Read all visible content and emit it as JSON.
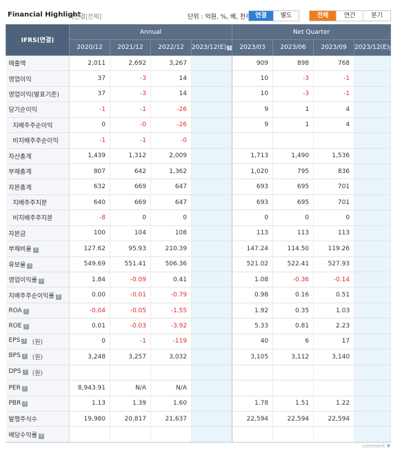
{
  "header": {
    "title": "Financial Highlight",
    "subtitle": "[연결|전체]",
    "unit": "단위 : 억원, %, 배, 천주",
    "toggle1": [
      {
        "label": "연결",
        "active": true
      },
      {
        "label": "별도",
        "active": false
      }
    ],
    "toggle2": [
      {
        "label": "전체",
        "active": true
      },
      {
        "label": "연간",
        "active": false
      },
      {
        "label": "분기",
        "active": false
      }
    ]
  },
  "table": {
    "row_header": "IFRS(연결)",
    "groups": [
      "Annual",
      "Net Quarter"
    ],
    "annual_periods": [
      "2020/12",
      "2021/12",
      "2022/12",
      "2023/12(E)"
    ],
    "quarter_periods": [
      "2023/03",
      "2023/06",
      "2023/09",
      "2023/12(E)"
    ],
    "rows": [
      {
        "label": "매출액",
        "sub": false,
        "q": false,
        "unit": "",
        "values": [
          "2,011",
          "2,692",
          "3,267",
          "",
          "909",
          "898",
          "768",
          ""
        ]
      },
      {
        "label": "영업이익",
        "sub": false,
        "q": false,
        "unit": "",
        "values": [
          "37",
          "-3",
          "14",
          "",
          "10",
          "-3",
          "-1",
          ""
        ]
      },
      {
        "label": "영업이익(발표기준)",
        "sub": false,
        "q": false,
        "unit": "",
        "values": [
          "37",
          "-3",
          "14",
          "",
          "10",
          "-3",
          "-1",
          ""
        ]
      },
      {
        "label": "당기순이익",
        "sub": false,
        "q": false,
        "unit": "",
        "values": [
          "-1",
          "-1",
          "-26",
          "",
          "9",
          "1",
          "4",
          ""
        ]
      },
      {
        "label": "지배주주순이익",
        "sub": true,
        "q": false,
        "unit": "",
        "values": [
          "0",
          "-0",
          "-26",
          "",
          "9",
          "1",
          "4",
          ""
        ]
      },
      {
        "label": "비지배주주순이익",
        "sub": true,
        "q": false,
        "unit": "",
        "values": [
          "-1",
          "-1",
          "-0",
          "",
          "",
          "",
          "",
          ""
        ]
      },
      {
        "label": "자산총계",
        "sub": false,
        "q": false,
        "unit": "",
        "values": [
          "1,439",
          "1,312",
          "2,009",
          "",
          "1,713",
          "1,490",
          "1,536",
          ""
        ]
      },
      {
        "label": "부채총계",
        "sub": false,
        "q": false,
        "unit": "",
        "values": [
          "807",
          "642",
          "1,362",
          "",
          "1,020",
          "795",
          "836",
          ""
        ]
      },
      {
        "label": "자본총계",
        "sub": false,
        "q": false,
        "unit": "",
        "values": [
          "632",
          "669",
          "647",
          "",
          "693",
          "695",
          "701",
          ""
        ]
      },
      {
        "label": "지배주주지분",
        "sub": true,
        "q": false,
        "unit": "",
        "values": [
          "640",
          "669",
          "647",
          "",
          "693",
          "695",
          "701",
          ""
        ]
      },
      {
        "label": "비지배주주지분",
        "sub": true,
        "q": false,
        "unit": "",
        "values": [
          "-8",
          "0",
          "0",
          "",
          "0",
          "0",
          "0",
          ""
        ]
      },
      {
        "label": "자본금",
        "sub": false,
        "q": false,
        "unit": "",
        "values": [
          "100",
          "104",
          "108",
          "",
          "113",
          "113",
          "113",
          ""
        ]
      },
      {
        "label": "부채비율",
        "sub": false,
        "q": true,
        "unit": "",
        "values": [
          "127.62",
          "95.93",
          "210.39",
          "",
          "147.24",
          "114.50",
          "119.26",
          ""
        ]
      },
      {
        "label": "유보율",
        "sub": false,
        "q": true,
        "unit": "",
        "values": [
          "549.69",
          "551.41",
          "506.36",
          "",
          "521.02",
          "522.41",
          "527.93",
          ""
        ]
      },
      {
        "label": "영업이익률",
        "sub": false,
        "q": true,
        "unit": "",
        "values": [
          "1.84",
          "-0.09",
          "0.41",
          "",
          "1.08",
          "-0.36",
          "-0.14",
          ""
        ]
      },
      {
        "label": "지배주주순이익률",
        "sub": false,
        "q": true,
        "unit": "",
        "values": [
          "0.00",
          "-0.01",
          "-0.79",
          "",
          "0.98",
          "0.16",
          "0.51",
          ""
        ]
      },
      {
        "label": "ROA",
        "sub": false,
        "q": true,
        "unit": "",
        "values": [
          "-0.04",
          "-0.05",
          "-1.55",
          "",
          "1.92",
          "0.35",
          "1.03",
          ""
        ]
      },
      {
        "label": "ROE",
        "sub": false,
        "q": true,
        "unit": "",
        "values": [
          "0.01",
          "-0.03",
          "-3.92",
          "",
          "5.33",
          "0.81",
          "2.23",
          ""
        ]
      },
      {
        "label": "EPS",
        "sub": false,
        "q": true,
        "unit": "(원)",
        "values": [
          "0",
          "-1",
          "-119",
          "",
          "40",
          "6",
          "17",
          ""
        ]
      },
      {
        "label": "BPS",
        "sub": false,
        "q": true,
        "unit": "(원)",
        "values": [
          "3,248",
          "3,257",
          "3,032",
          "",
          "3,105",
          "3,112",
          "3,140",
          ""
        ]
      },
      {
        "label": "DPS",
        "sub": false,
        "q": true,
        "unit": "(원)",
        "values": [
          "",
          "",
          "",
          "",
          "",
          "",
          "",
          ""
        ]
      },
      {
        "label": "PER",
        "sub": false,
        "q": true,
        "unit": "",
        "values": [
          "8,943.91",
          "N/A",
          "N/A",
          "",
          "",
          "",
          "",
          ""
        ]
      },
      {
        "label": "PBR",
        "sub": false,
        "q": true,
        "unit": "",
        "values": [
          "1.13",
          "1.39",
          "1.60",
          "",
          "1.78",
          "1.51",
          "1.22",
          ""
        ]
      },
      {
        "label": "발행주식수",
        "sub": false,
        "q": false,
        "unit": "",
        "values": [
          "19,980",
          "20,817",
          "21,637",
          "",
          "22,594",
          "22,594",
          "22,594",
          ""
        ]
      },
      {
        "label": "배당수익률",
        "sub": false,
        "q": true,
        "unit": "",
        "values": [
          "",
          "",
          "",
          "",
          "",
          "",
          "",
          ""
        ]
      }
    ]
  },
  "footer": {
    "comment": "comment ▼"
  },
  "colors": {
    "header_bg": "#5a6e86",
    "estimate_bg": "#e9f5fb",
    "negative": "#e02a2a",
    "toggle_blue": "#2f7fd3",
    "toggle_orange": "#ef7d1b"
  }
}
